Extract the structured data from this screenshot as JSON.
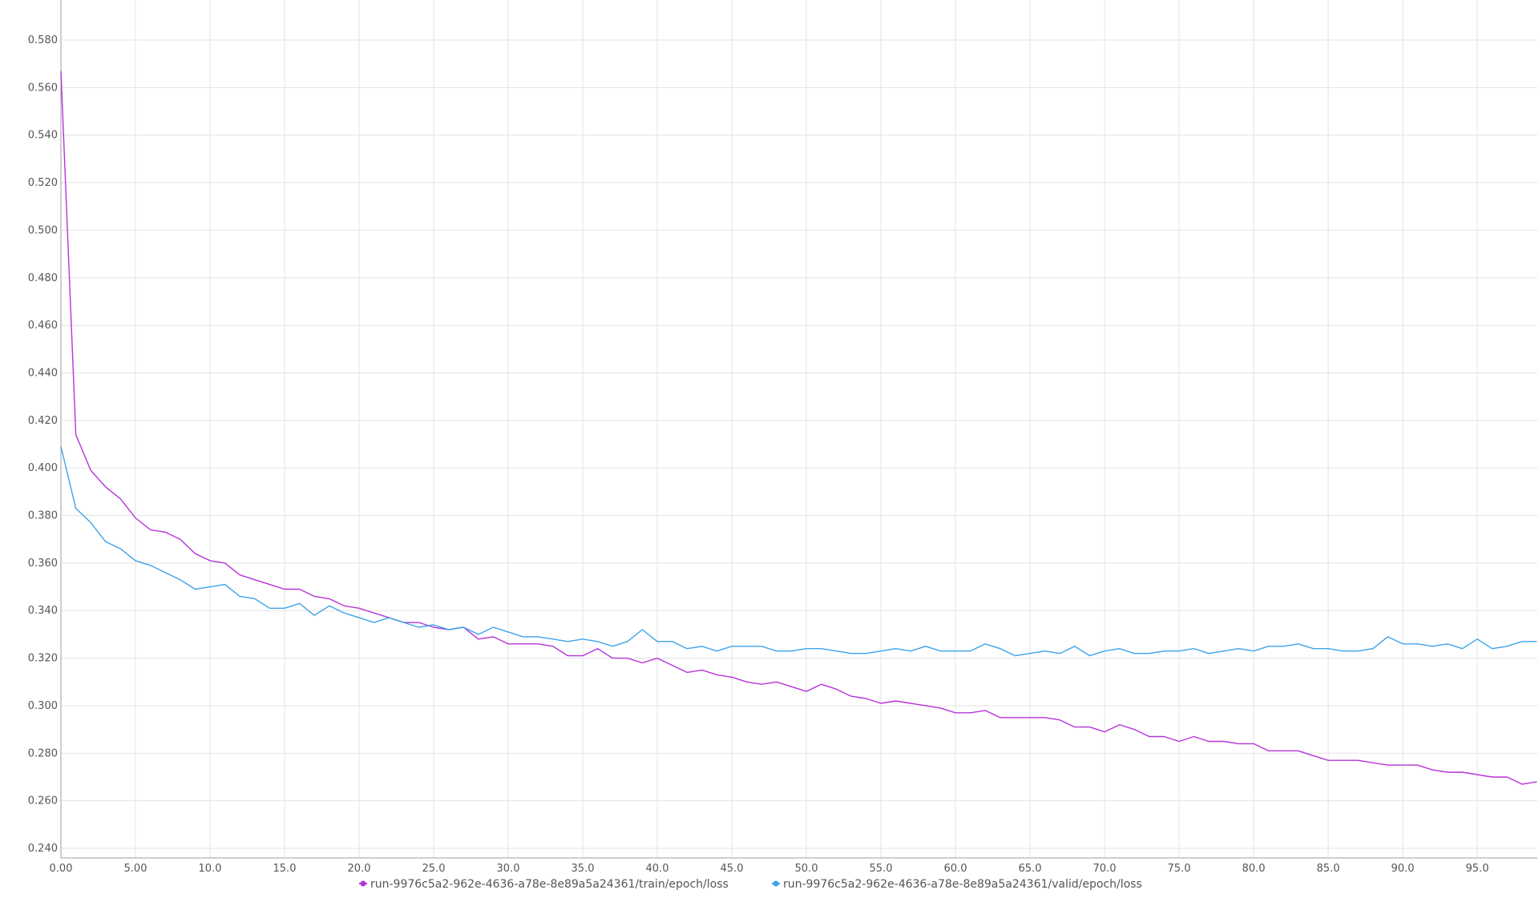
{
  "chart_data": {
    "type": "line",
    "title": "",
    "xlabel": "",
    "ylabel": "",
    "xlim": [
      0,
      99
    ],
    "ylim": [
      0.24,
      0.59
    ],
    "grid": true,
    "legend_placement": "bottom-center",
    "x_ticks": [
      {
        "value": 0,
        "label": "0.00"
      },
      {
        "value": 5,
        "label": "5.00"
      },
      {
        "value": 10,
        "label": "10.0"
      },
      {
        "value": 15,
        "label": "15.0"
      },
      {
        "value": 20,
        "label": "20.0"
      },
      {
        "value": 25,
        "label": "25.0"
      },
      {
        "value": 30,
        "label": "30.0"
      },
      {
        "value": 35,
        "label": "35.0"
      },
      {
        "value": 40,
        "label": "40.0"
      },
      {
        "value": 45,
        "label": "45.0"
      },
      {
        "value": 50,
        "label": "50.0"
      },
      {
        "value": 55,
        "label": "55.0"
      },
      {
        "value": 60,
        "label": "60.0"
      },
      {
        "value": 65,
        "label": "65.0"
      },
      {
        "value": 70,
        "label": "70.0"
      },
      {
        "value": 75,
        "label": "75.0"
      },
      {
        "value": 80,
        "label": "80.0"
      },
      {
        "value": 85,
        "label": "85.0"
      },
      {
        "value": 90,
        "label": "90.0"
      },
      {
        "value": 95,
        "label": "95.0"
      }
    ],
    "y_ticks": [
      {
        "value": 0.24,
        "label": "0.240"
      },
      {
        "value": 0.26,
        "label": "0.260"
      },
      {
        "value": 0.28,
        "label": "0.280"
      },
      {
        "value": 0.3,
        "label": "0.300"
      },
      {
        "value": 0.32,
        "label": "0.320"
      },
      {
        "value": 0.34,
        "label": "0.340"
      },
      {
        "value": 0.36,
        "label": "0.360"
      },
      {
        "value": 0.38,
        "label": "0.380"
      },
      {
        "value": 0.4,
        "label": "0.400"
      },
      {
        "value": 0.42,
        "label": "0.420"
      },
      {
        "value": 0.44,
        "label": "0.440"
      },
      {
        "value": 0.46,
        "label": "0.460"
      },
      {
        "value": 0.48,
        "label": "0.480"
      },
      {
        "value": 0.5,
        "label": "0.500"
      },
      {
        "value": 0.52,
        "label": "0.520"
      },
      {
        "value": 0.54,
        "label": "0.540"
      },
      {
        "value": 0.56,
        "label": "0.560"
      },
      {
        "value": 0.58,
        "label": "0.580"
      }
    ],
    "series": [
      {
        "name": "run-9976c5a2-962e-4636-a78e-8e89a5a24361/train/epoch/loss",
        "color": "#b533d9",
        "values": [
          0.567,
          0.414,
          0.399,
          0.392,
          0.387,
          0.379,
          0.374,
          0.373,
          0.37,
          0.364,
          0.361,
          0.36,
          0.355,
          0.353,
          0.351,
          0.349,
          0.349,
          0.346,
          0.345,
          0.342,
          0.341,
          0.339,
          0.337,
          0.335,
          0.335,
          0.333,
          0.332,
          0.333,
          0.328,
          0.329,
          0.326,
          0.326,
          0.326,
          0.325,
          0.321,
          0.321,
          0.324,
          0.32,
          0.32,
          0.318,
          0.32,
          0.317,
          0.314,
          0.315,
          0.313,
          0.312,
          0.31,
          0.309,
          0.31,
          0.308,
          0.306,
          0.309,
          0.307,
          0.304,
          0.303,
          0.301,
          0.302,
          0.301,
          0.3,
          0.299,
          0.297,
          0.297,
          0.298,
          0.295,
          0.295,
          0.295,
          0.295,
          0.294,
          0.291,
          0.291,
          0.289,
          0.292,
          0.29,
          0.287,
          0.287,
          0.285,
          0.287,
          0.285,
          0.285,
          0.284,
          0.284,
          0.281,
          0.281,
          0.281,
          0.279,
          0.277,
          0.277,
          0.277,
          0.276,
          0.275,
          0.275,
          0.275,
          0.273,
          0.272,
          0.272,
          0.271,
          0.27,
          0.27,
          0.267,
          0.268
        ]
      },
      {
        "name": "run-9976c5a2-962e-4636-a78e-8e89a5a24361/valid/epoch/loss",
        "color": "#3ea3ea",
        "values": [
          0.409,
          0.383,
          0.377,
          0.369,
          0.366,
          0.361,
          0.359,
          0.356,
          0.353,
          0.349,
          0.35,
          0.351,
          0.346,
          0.345,
          0.341,
          0.341,
          0.343,
          0.338,
          0.342,
          0.339,
          0.337,
          0.335,
          0.337,
          0.335,
          0.333,
          0.334,
          0.332,
          0.333,
          0.33,
          0.333,
          0.331,
          0.329,
          0.329,
          0.328,
          0.327,
          0.328,
          0.327,
          0.325,
          0.327,
          0.332,
          0.327,
          0.327,
          0.324,
          0.325,
          0.323,
          0.325,
          0.325,
          0.325,
          0.323,
          0.323,
          0.324,
          0.324,
          0.323,
          0.322,
          0.322,
          0.323,
          0.324,
          0.323,
          0.325,
          0.323,
          0.323,
          0.323,
          0.326,
          0.324,
          0.321,
          0.322,
          0.323,
          0.322,
          0.325,
          0.321,
          0.323,
          0.324,
          0.322,
          0.322,
          0.323,
          0.323,
          0.324,
          0.322,
          0.323,
          0.324,
          0.323,
          0.325,
          0.325,
          0.326,
          0.324,
          0.324,
          0.323,
          0.323,
          0.324,
          0.329,
          0.326,
          0.326,
          0.325,
          0.326,
          0.324,
          0.328,
          0.324,
          0.325,
          0.327,
          0.327
        ]
      }
    ]
  }
}
